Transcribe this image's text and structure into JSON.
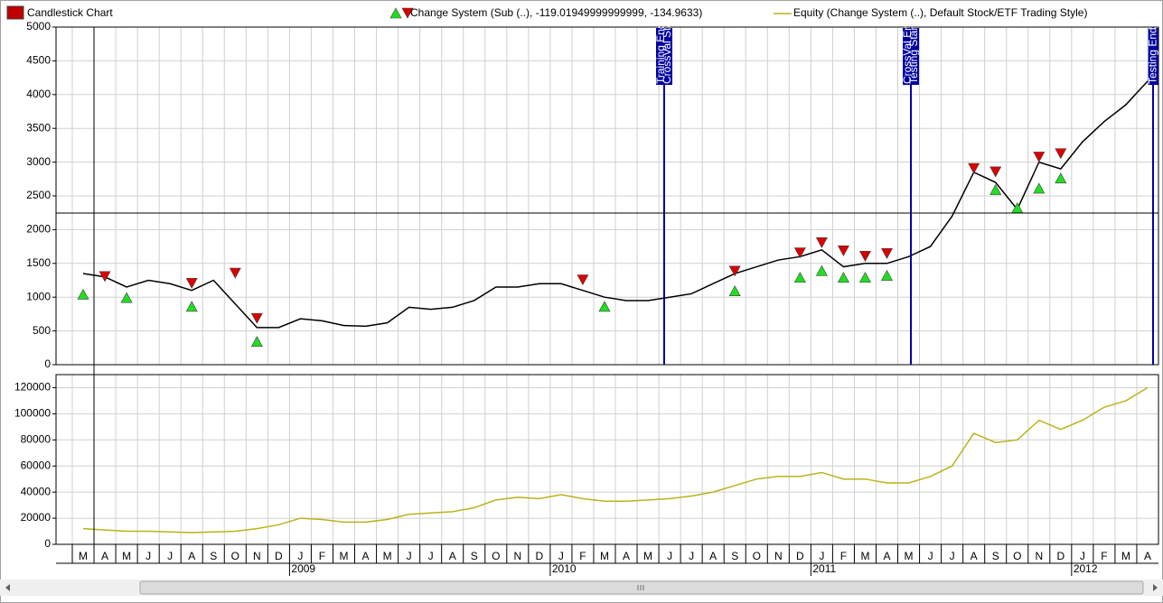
{
  "chart_data": [
    {
      "type": "line",
      "series": [
        {
          "name": "Candlestick Chart",
          "color": "#000000",
          "legend_color": "#c00000",
          "values": [
            1350,
            1300,
            1150,
            1250,
            1200,
            1100,
            1250,
            900,
            550,
            550,
            680,
            650,
            580,
            570,
            620,
            850,
            820,
            850,
            950,
            1150,
            1150,
            1200,
            1200,
            1100,
            1000,
            950,
            950,
            1000,
            1050,
            1200,
            1350,
            1450,
            1550,
            1600,
            1700,
            1450,
            1500,
            1500,
            1600,
            1750,
            2200,
            2850,
            2700,
            2300,
            3000,
            2900,
            3300,
            3600,
            3850,
            4200
          ]
        }
      ],
      "signals": {
        "name": "Change System (Sub (..), -119.01949999999999, -134.9633)",
        "buy": {
          "color": "#22dd22",
          "values": [
            1050,
            null,
            1000,
            null,
            null,
            870,
            null,
            null,
            350,
            null,
            null,
            null,
            null,
            null,
            null,
            null,
            null,
            null,
            null,
            null,
            null,
            null,
            null,
            null,
            870,
            null,
            null,
            null,
            null,
            null,
            1100,
            null,
            null,
            1300,
            1400,
            1300,
            1300,
            1330,
            null,
            null,
            null,
            null,
            2600,
            2330,
            2620,
            2770,
            null,
            null,
            null,
            null
          ]
        },
        "sell": {
          "color": "#dd0000",
          "values": [
            null,
            1300,
            null,
            null,
            null,
            1200,
            null,
            1350,
            680,
            null,
            null,
            null,
            null,
            null,
            null,
            null,
            null,
            null,
            null,
            null,
            null,
            null,
            null,
            1250,
            null,
            null,
            null,
            null,
            null,
            null,
            1380,
            null,
            null,
            1650,
            1800,
            1680,
            1600,
            1640,
            null,
            null,
            null,
            2900,
            2850,
            null,
            3070,
            3120,
            null,
            null,
            null,
            null
          ]
        }
      },
      "ylim": [
        0,
        5000
      ],
      "yticks": [
        0,
        500,
        1000,
        1500,
        2000,
        2500,
        3000,
        3500,
        4000,
        4500,
        5000
      ],
      "grid": true,
      "annotations": [
        {
          "lines": [
            "Training End",
            "CrossVal Start"
          ]
        },
        {
          "lines": [
            "CrossVal End",
            "Testing Start"
          ]
        },
        {
          "lines": [
            "Testing End"
          ]
        }
      ],
      "annotation_color": "#0000a0"
    },
    {
      "type": "line",
      "series": [
        {
          "name": "Equity (Change System (..), Default Stock/ETF Trading Style)",
          "color": "#b8b41a",
          "values": [
            12000,
            11000,
            10000,
            10000,
            9500,
            9000,
            9500,
            10000,
            12000,
            15000,
            20000,
            19000,
            17000,
            17000,
            19000,
            23000,
            24000,
            25000,
            28000,
            34000,
            36000,
            35000,
            38000,
            35000,
            33000,
            33000,
            34000,
            35000,
            37000,
            40000,
            45000,
            50000,
            52000,
            52000,
            55000,
            50000,
            50000,
            47000,
            47000,
            52000,
            60000,
            85000,
            78000,
            80000,
            95000,
            88000,
            95000,
            105000,
            110000,
            120000
          ]
        }
      ],
      "categories": [
        "M",
        "A",
        "M",
        "J",
        "J",
        "A",
        "S",
        "O",
        "N",
        "D",
        "J",
        "F",
        "M",
        "A",
        "M",
        "J",
        "J",
        "A",
        "S",
        "O",
        "N",
        "D",
        "J",
        "F",
        "M",
        "A",
        "M",
        "J",
        "J",
        "A",
        "S",
        "O",
        "N",
        "D",
        "J",
        "F",
        "M",
        "A",
        "M",
        "J",
        "J",
        "A",
        "S",
        "O",
        "N",
        "D",
        "J",
        "F",
        "M",
        "A"
      ],
      "year_labels": [
        null,
        null,
        null,
        null,
        null,
        null,
        null,
        null,
        null,
        null,
        "2009",
        null,
        null,
        null,
        null,
        null,
        null,
        null,
        null,
        null,
        null,
        null,
        "2010",
        null,
        null,
        null,
        null,
        null,
        null,
        null,
        null,
        null,
        null,
        null,
        "2011",
        null,
        null,
        null,
        null,
        null,
        null,
        null,
        null,
        null,
        null,
        null,
        "2012",
        null,
        null,
        null
      ],
      "ylim": [
        0,
        130000
      ],
      "yticks": [
        0,
        20000,
        40000,
        60000,
        80000,
        100000,
        120000
      ],
      "grid": true
    }
  ]
}
